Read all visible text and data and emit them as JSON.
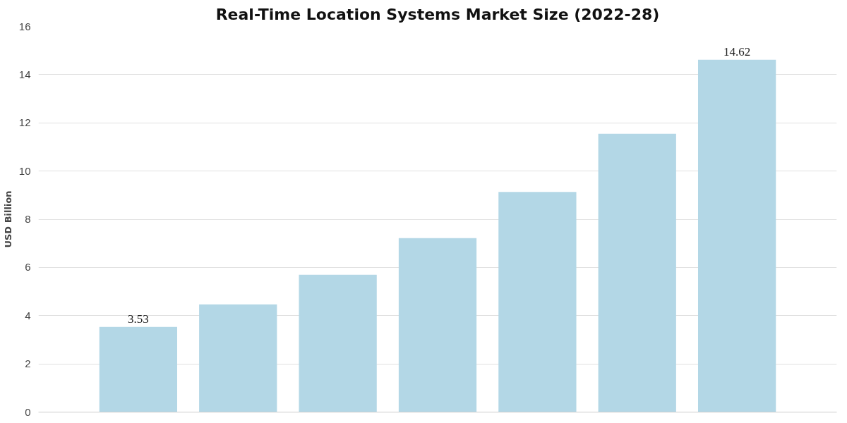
{
  "chart_data": {
    "type": "bar",
    "title": "Real-Time Location Systems Market Size (2022-28)",
    "ylabel": "USD Billion",
    "categories": [
      null,
      null,
      null,
      null,
      null,
      null,
      null
    ],
    "values": [
      3.53,
      4.47,
      5.7,
      7.22,
      9.13,
      11.55,
      14.62
    ],
    "value_labels": [
      "3.53",
      null,
      null,
      null,
      null,
      null,
      "14.62"
    ],
    "color": "#b3d7e6",
    "ylim": [
      0,
      16
    ],
    "yticks": [
      0,
      2,
      4,
      6,
      8,
      10,
      12,
      14,
      16
    ],
    "grid": "y"
  }
}
